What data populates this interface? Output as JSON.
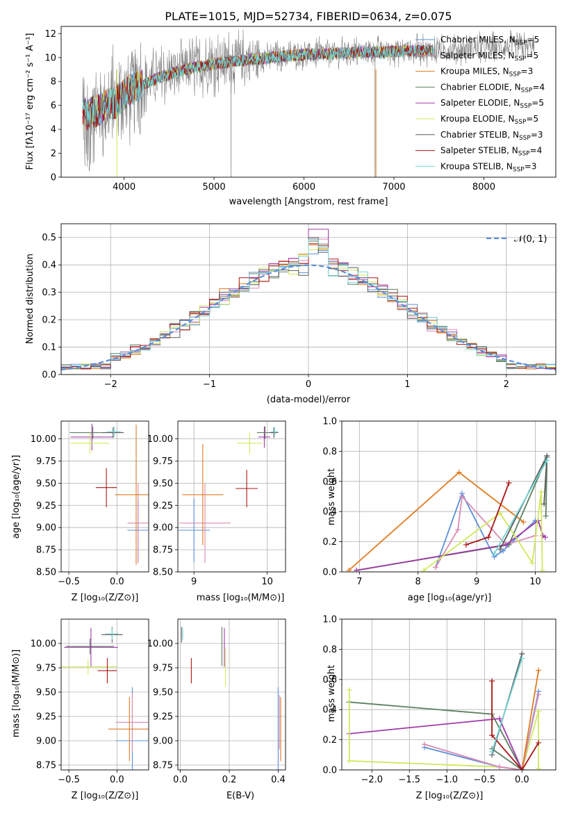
{
  "colors": {
    "Chabrier MILES": "#5b8fd9",
    "Salpeter MILES": "#d98ab4",
    "Kroupa MILES": "#e07a1f",
    "Chabrier ELODIE": "#5c7f60",
    "Salpeter ELODIE": "#a03aa8",
    "Kroupa ELODIE": "#cfe85a",
    "Chabrier STELIB": "#595959",
    "Salpeter STELIB": "#a81414",
    "Kroupa STELIB": "#72d4d4"
  },
  "chart_data": [
    {
      "id": "spectrum",
      "type": "line",
      "title": "PLATE=1015, MJD=52734, FIBERID=0634, z=0.075",
      "xlabel": "wavelength [Angstrom, rest frame]",
      "ylabel": "Flux [fλ10⁻¹⁷ erg cm⁻² s⁻¹ A⁻¹]",
      "xlim": [
        3300,
        8800
      ],
      "ylim": [
        0,
        12.6
      ],
      "xticks": [
        4000,
        5000,
        6000,
        7000,
        8000
      ],
      "yticks": [
        0,
        2,
        4,
        6,
        8,
        10,
        12
      ],
      "continuum": {
        "x": [
          3550,
          3700,
          3900,
          4100,
          4400,
          4700,
          5000,
          5300,
          5600,
          6000,
          6400,
          6800,
          7200,
          7400,
          7700,
          8000,
          8300,
          8550
        ],
        "y": [
          5.2,
          5.6,
          6.3,
          7.5,
          8.4,
          9.1,
          9.5,
          9.8,
          10.0,
          10.3,
          10.4,
          10.5,
          10.6,
          10.6,
          10.7,
          10.8,
          10.9,
          10.8
        ]
      },
      "legend": [
        {
          "name": "Chabrier MILES, N_SSP=5",
          "key": "Chabrier MILES"
        },
        {
          "name": "Salpeter MILES, N_SSP=5",
          "key": "Salpeter MILES"
        },
        {
          "name": "Kroupa MILES, N_SSP=3",
          "key": "Kroupa MILES"
        },
        {
          "name": "Chabrier ELODIE, N_SSP=4",
          "key": "Chabrier ELODIE"
        },
        {
          "name": "Salpeter ELODIE, N_SSP=5",
          "key": "Salpeter ELODIE"
        },
        {
          "name": "Kroupa ELODIE, N_SSP=5",
          "key": "Kroupa ELODIE"
        },
        {
          "name": "Chabrier STELIB, N_SSP=3",
          "key": "Chabrier STELIB"
        },
        {
          "name": "Salpeter STELIB, N_SSP=4",
          "key": "Salpeter STELIB"
        },
        {
          "name": "Kroupa STELIB, N_SSP=3",
          "key": "Kroupa STELIB"
        }
      ]
    },
    {
      "id": "residuals",
      "type": "line",
      "xlabel": "(data-model)/error",
      "ylabel": "Normed distribution",
      "xlim": [
        -2.5,
        2.5
      ],
      "ylim": [
        0,
        0.55
      ],
      "xticks": [
        -2,
        -1,
        0,
        1,
        2
      ],
      "yticks": [
        0,
        0.1,
        0.2,
        0.3,
        0.4,
        0.5
      ],
      "bin_width": 0.1,
      "legend": "𝒩(0, 1)",
      "gaussian": {
        "mean": 0,
        "sigma": 1
      }
    },
    {
      "id": "age-vs-Z",
      "type": "scatter",
      "xlabel": "Z [log₁₀(Z/Z⊙)]",
      "ylabel": "age  [log₁₀(age/yr)]",
      "xlim": [
        -0.58,
        0.33
      ],
      "ylim": [
        8.5,
        10.2
      ],
      "xticks": [
        -0.5,
        0.0
      ],
      "yticks": [
        8.5,
        8.75,
        9.0,
        9.25,
        9.5,
        9.75,
        10.0
      ],
      "points": [
        {
          "key": "Chabrier MILES",
          "x": 0.22,
          "y": 8.97,
          "xerr": 0.11,
          "yerr": 0.36
        },
        {
          "key": "Salpeter MILES",
          "x": 0.22,
          "y": 9.05,
          "xerr": 0.11,
          "yerr": 0.45
        },
        {
          "key": "Kroupa MILES",
          "x": 0.2,
          "y": 9.37,
          "xerr": 0.22,
          "yerr": 0.79
        },
        {
          "key": "Chabrier ELODIE",
          "x": -0.25,
          "y": 10.07,
          "xerr": 0.24,
          "yerr": 0.07
        },
        {
          "key": "Salpeter ELODIE",
          "x": -0.26,
          "y": 10.02,
          "xerr": 0.22,
          "yerr": 0.15
        },
        {
          "key": "Kroupa ELODIE",
          "x": -0.28,
          "y": 9.95,
          "xerr": 0.2,
          "yerr": 0.12
        },
        {
          "key": "Chabrier STELIB",
          "x": -0.04,
          "y": 10.07,
          "xerr": 0.11,
          "yerr": 0.06
        },
        {
          "key": "Salpeter STELIB",
          "x": -0.11,
          "y": 9.45,
          "xerr": 0.11,
          "yerr": 0.22
        },
        {
          "key": "Kroupa STELIB",
          "x": -0.03,
          "y": 10.08,
          "xerr": 0.07,
          "yerr": 0.06
        }
      ]
    },
    {
      "id": "age-vs-mass",
      "type": "scatter",
      "xlabel": "mass [log₁₀(M/M⊙)]",
      "ylabel": "",
      "xlim": [
        8.78,
        10.25
      ],
      "ylim": [
        8.5,
        10.2
      ],
      "xticks": [
        9,
        10
      ],
      "yticks": [
        8.5,
        8.75,
        9.0,
        9.25,
        9.5,
        9.75,
        10.0
      ],
      "points": [
        {
          "key": "Chabrier MILES",
          "x": 9.0,
          "y": 8.97,
          "xerr": 0.22,
          "yerr": 0.36
        },
        {
          "key": "Salpeter MILES",
          "x": 9.15,
          "y": 9.05,
          "xerr": 0.35,
          "yerr": 0.45
        },
        {
          "key": "Kroupa MILES",
          "x": 9.12,
          "y": 9.37,
          "xerr": 0.28,
          "yerr": 0.57
        },
        {
          "key": "Chabrier ELODIE",
          "x": 9.97,
          "y": 10.07,
          "xerr": 0.11,
          "yerr": 0.07
        },
        {
          "key": "Salpeter ELODIE",
          "x": 9.96,
          "y": 10.02,
          "xerr": 0.08,
          "yerr": 0.12
        },
        {
          "key": "Kroupa ELODIE",
          "x": 9.76,
          "y": 9.95,
          "xerr": 0.17,
          "yerr": 0.12
        },
        {
          "key": "Chabrier STELIB",
          "x": 10.09,
          "y": 10.07,
          "xerr": 0.06,
          "yerr": 0.06
        },
        {
          "key": "Salpeter STELIB",
          "x": 9.72,
          "y": 9.44,
          "xerr": 0.15,
          "yerr": 0.21
        },
        {
          "key": "Kroupa STELIB",
          "x": 10.1,
          "y": 10.08,
          "xerr": 0.05,
          "yerr": 0.05
        }
      ]
    },
    {
      "id": "weight-vs-age",
      "type": "line",
      "xlabel": "age  [log₁₀(age/yr)]",
      "ylabel": "mass weight",
      "xlim": [
        6.7,
        10.35
      ],
      "ylim": [
        0,
        1.0
      ],
      "xticks": [
        7,
        8,
        9,
        10
      ],
      "yticks": [
        0,
        0.2,
        0.4,
        0.6,
        0.8,
        1.0
      ],
      "series": [
        {
          "key": "Kroupa MILES",
          "x": [
            6.82,
            8.7,
            9.8
          ],
          "y": [
            0.01,
            0.66,
            0.33
          ]
        },
        {
          "key": "Chabrier MILES",
          "x": [
            8.3,
            8.75,
            9.3,
            9.45,
            10.0
          ],
          "y": [
            0.03,
            0.52,
            0.1,
            0.14,
            0.34
          ]
        },
        {
          "key": "Salpeter MILES",
          "x": [
            8.3,
            8.68,
            8.75,
            9.5,
            10.0
          ],
          "y": [
            0.03,
            0.28,
            0.5,
            0.18,
            0.24
          ]
        },
        {
          "key": "Chabrier ELODIE",
          "x": [
            6.95,
            9.55,
            10.2,
            10.18
          ],
          "y": [
            0.01,
            0.18,
            0.76,
            0.37
          ]
        },
        {
          "key": "Salpeter ELODIE",
          "x": [
            6.95,
            9.5,
            10.05,
            10.13,
            10.17
          ],
          "y": [
            0.01,
            0.18,
            0.34,
            0.24,
            0.23
          ]
        },
        {
          "key": "Kroupa ELODIE",
          "x": [
            8.1,
            9.4,
            9.95,
            10.1,
            10.12
          ],
          "y": [
            0.01,
            0.39,
            0.06,
            0.53,
            0.01
          ]
        },
        {
          "key": "Chabrier STELIB",
          "x": [
            9.4,
            10.2,
            10.15
          ],
          "y": [
            0.15,
            0.77,
            0.45
          ]
        },
        {
          "key": "Salpeter STELIB",
          "x": [
            8.82,
            9.2,
            9.55
          ],
          "y": [
            0.18,
            0.23,
            0.59
          ]
        },
        {
          "key": "Kroupa STELIB",
          "x": [
            9.3,
            10.2
          ],
          "y": [
            0.12,
            0.74
          ]
        }
      ]
    },
    {
      "id": "mass-vs-Z",
      "type": "scatter",
      "xlabel": "Z [log₁₀(Z/Z⊙)]",
      "ylabel": "mass [log₁₀(M/M⊙)]",
      "xlim": [
        -0.58,
        0.33
      ],
      "ylim": [
        8.7,
        10.25
      ],
      "xticks": [
        -0.5,
        0.0
      ],
      "yticks": [
        8.75,
        9.0,
        9.25,
        9.5,
        9.75,
        10.0
      ],
      "points": [
        {
          "key": "Chabrier MILES",
          "x": 0.16,
          "y": 9.0,
          "xerr": 0.17,
          "yerr": 0.55
        },
        {
          "key": "Salpeter MILES",
          "x": 0.16,
          "y": 9.19,
          "xerr": 0.17,
          "yerr": 0.3
        },
        {
          "key": "Kroupa MILES",
          "x": 0.13,
          "y": 9.12,
          "xerr": 0.22,
          "yerr": 0.33
        },
        {
          "key": "Chabrier ELODIE",
          "x": -0.28,
          "y": 9.97,
          "xerr": 0.25,
          "yerr": 0.08
        },
        {
          "key": "Salpeter ELODIE",
          "x": -0.27,
          "y": 9.96,
          "xerr": 0.28,
          "yerr": 0.2
        },
        {
          "key": "Kroupa ELODIE",
          "x": -0.3,
          "y": 9.76,
          "xerr": 0.3,
          "yerr": 0.08
        },
        {
          "key": "Chabrier STELIB",
          "x": -0.05,
          "y": 10.09,
          "xerr": 0.11,
          "yerr": 0.08
        },
        {
          "key": "Salpeter STELIB",
          "x": -0.1,
          "y": 9.72,
          "xerr": 0.1,
          "yerr": 0.13
        },
        {
          "key": "Kroupa STELIB",
          "x": -0.05,
          "y": 10.1,
          "xerr": 0.07,
          "yerr": 0.06
        }
      ]
    },
    {
      "id": "mass-vs-ebv",
      "type": "scatter",
      "xlabel": "E(B-V)",
      "ylabel": "",
      "xlim": [
        -0.01,
        0.43
      ],
      "ylim": [
        8.7,
        10.25
      ],
      "xticks": [
        0.0,
        0.2,
        0.4
      ],
      "yticks": [
        8.75,
        9.0,
        9.25,
        9.5,
        9.75,
        10.0
      ],
      "points": [
        {
          "key": "Chabrier MILES",
          "x": 0.4,
          "y": 9.0,
          "xerr": 0,
          "yerr": 0.55
        },
        {
          "key": "Salpeter MILES",
          "x": 0.405,
          "y": 9.19,
          "xerr": 0,
          "yerr": 0.28
        },
        {
          "key": "Kroupa MILES",
          "x": 0.41,
          "y": 9.12,
          "xerr": 0,
          "yerr": 0.33
        },
        {
          "key": "Chabrier ELODIE",
          "x": 0.17,
          "y": 9.97,
          "xerr": 0,
          "yerr": 0.2
        },
        {
          "key": "Salpeter ELODIE",
          "x": 0.18,
          "y": 9.96,
          "xerr": 0,
          "yerr": 0.2
        },
        {
          "key": "Kroupa ELODIE",
          "x": 0.185,
          "y": 9.76,
          "xerr": 0,
          "yerr": 0.2
        },
        {
          "key": "Chabrier STELIB",
          "x": 0.005,
          "y": 10.09,
          "xerr": 0,
          "yerr": 0.08
        },
        {
          "key": "Salpeter STELIB",
          "x": 0.045,
          "y": 9.72,
          "xerr": 0,
          "yerr": 0.13
        },
        {
          "key": "Kroupa STELIB",
          "x": 0.01,
          "y": 10.1,
          "xerr": 0,
          "yerr": 0.06
        }
      ]
    },
    {
      "id": "weight-vs-Z",
      "type": "line",
      "xlabel": "Z [log₁₀(Z/Z⊙)]",
      "ylabel": "mass weight",
      "xlim": [
        -2.4,
        0.45
      ],
      "ylim": [
        0,
        1.0
      ],
      "xticks": [
        -2.0,
        -1.5,
        -1.0,
        -0.5,
        0.0
      ],
      "yticks": [
        0,
        0.2,
        0.4,
        0.6,
        0.8,
        1.0
      ],
      "series": [
        {
          "key": "Chabrier ELODIE",
          "x": [
            -2.3,
            -0.4,
            0.0,
            -0.4
          ],
          "y": [
            0.45,
            0.37,
            0.0,
            0.14
          ]
        },
        {
          "key": "Salpeter ELODIE",
          "x": [
            -2.3,
            -0.3,
            0.0
          ],
          "y": [
            0.24,
            0.34,
            0.0
          ]
        },
        {
          "key": "Kroupa ELODIE",
          "x": [
            -2.3,
            -2.3,
            -0.3,
            0.0,
            0.22,
            0.22
          ],
          "y": [
            0.53,
            0.06,
            0.02,
            0.0,
            0.39,
            0.01
          ]
        },
        {
          "key": "Chabrier MILES",
          "x": [
            -1.3,
            -0.3,
            0.0,
            0.22
          ],
          "y": [
            0.15,
            0.02,
            0.0,
            0.52
          ]
        },
        {
          "key": "Salpeter MILES",
          "x": [
            -1.3,
            -0.3,
            0.0,
            0.22
          ],
          "y": [
            0.17,
            0.02,
            0.0,
            0.5
          ]
        },
        {
          "key": "Kroupa MILES",
          "x": [
            0.0,
            0.22
          ],
          "y": [
            0.0,
            0.66
          ]
        },
        {
          "key": "Chabrier STELIB",
          "x": [
            -0.4,
            0.0
          ],
          "y": [
            0.1,
            0.77
          ]
        },
        {
          "key": "Salpeter STELIB",
          "x": [
            -0.4,
            -0.4,
            0.0,
            0.22
          ],
          "y": [
            0.59,
            0.23,
            0.0,
            0.18
          ]
        },
        {
          "key": "Kroupa STELIB",
          "x": [
            -0.4,
            0.0
          ],
          "y": [
            0.12,
            0.74
          ]
        }
      ]
    }
  ]
}
